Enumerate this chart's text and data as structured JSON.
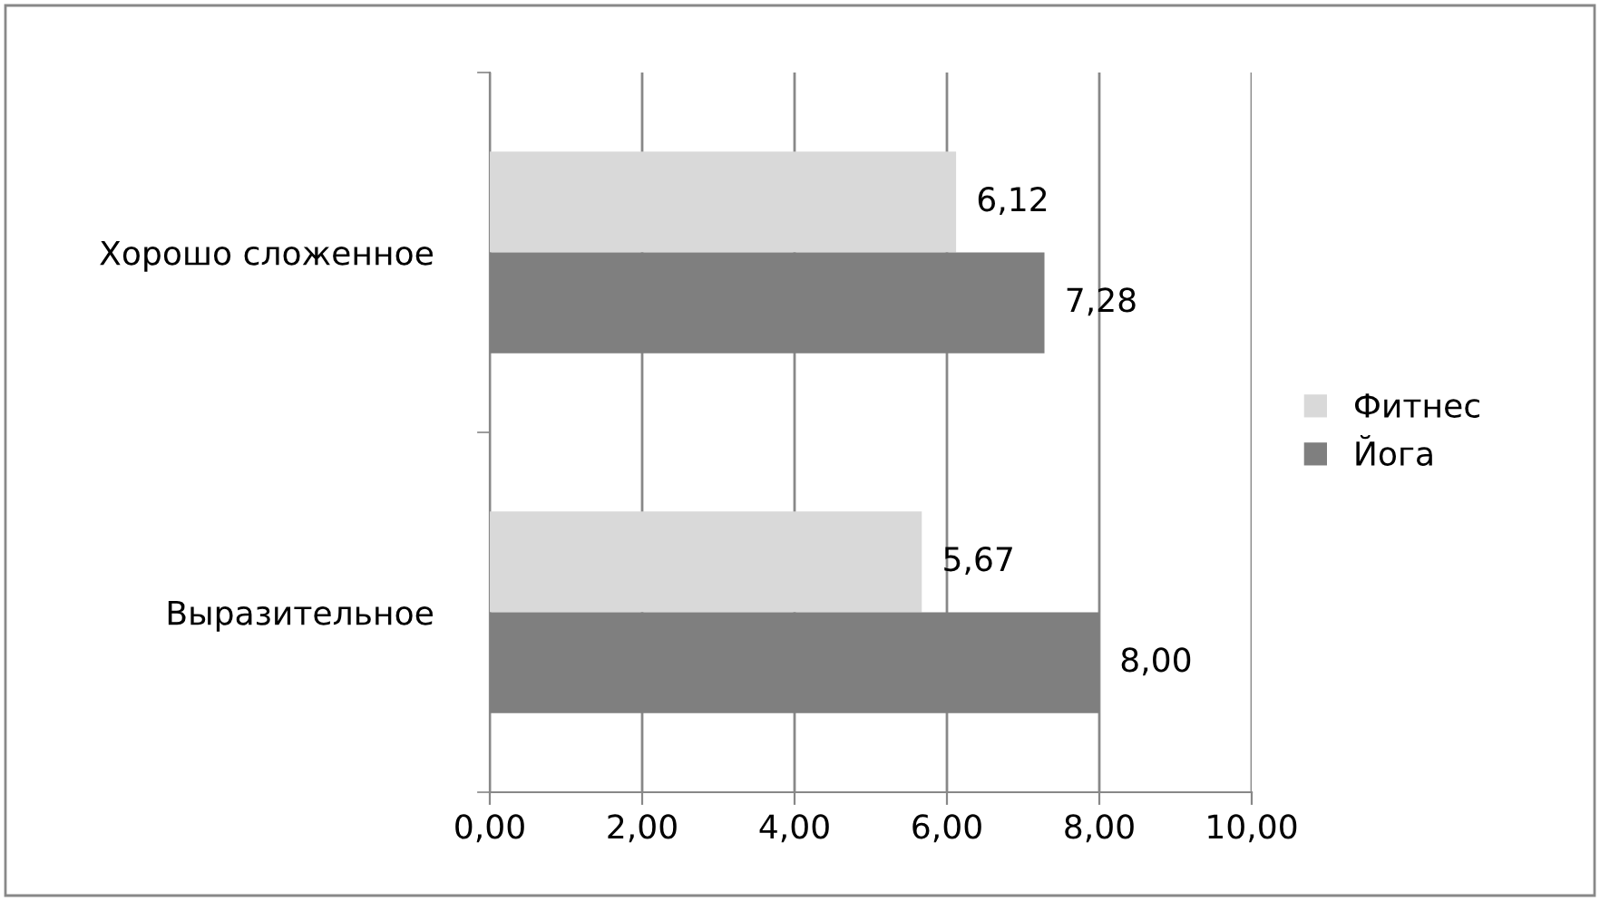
{
  "chart_data": {
    "type": "bar",
    "orientation": "horizontal",
    "categories": [
      "Хорошо сложенное",
      "Выразительное"
    ],
    "series": [
      {
        "name": "Фитнес",
        "color": "#d9d9d9",
        "values": [
          6.12,
          5.67
        ],
        "value_labels": [
          "6,12",
          "5,67"
        ]
      },
      {
        "name": "Йога",
        "color": "#7f7f7f",
        "values": [
          7.28,
          8.0
        ],
        "value_labels": [
          "7,28",
          "8,00"
        ]
      }
    ],
    "xlim": [
      0,
      10
    ],
    "xticks": [
      {
        "value": 0,
        "label": "0,00"
      },
      {
        "value": 2,
        "label": "2,00"
      },
      {
        "value": 4,
        "label": "4,00"
      },
      {
        "value": 6,
        "label": "6,00"
      },
      {
        "value": 8,
        "label": "8,00"
      },
      {
        "value": 10,
        "label": "10,00"
      }
    ],
    "grid": "x",
    "legend": "right"
  }
}
